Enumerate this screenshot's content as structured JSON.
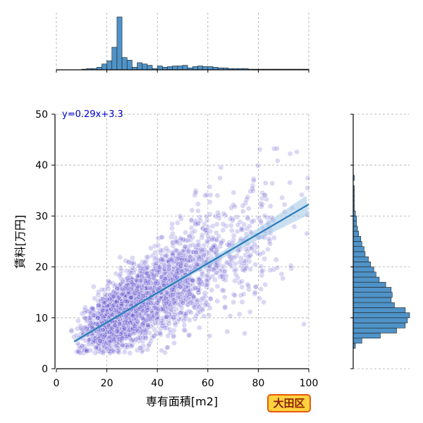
{
  "badge": {
    "label": "大田区"
  },
  "chart_data": {
    "type": "scatter",
    "title": "",
    "xlabel": "専有面積[m2]",
    "ylabel": "賃料[万円]",
    "xlim": [
      0,
      100
    ],
    "ylim": [
      0,
      50
    ],
    "xticks": [
      0,
      20,
      40,
      60,
      80,
      100
    ],
    "yticks": [
      0,
      10,
      20,
      30,
      40,
      50
    ],
    "grid": true,
    "annotation": "y=0.29x+3.3",
    "regression": {
      "slope": 0.29,
      "intercept": 3.3,
      "x_range": [
        7,
        100
      ]
    },
    "scatter": {
      "approx_points": 3000,
      "clusters": [
        {
          "x_center": 24,
          "x_sd": 6,
          "weight": 0.55
        },
        {
          "x_center": 45,
          "x_sd": 10,
          "weight": 0.35
        },
        {
          "x_center": 70,
          "x_sd": 13,
          "weight": 0.1
        }
      ],
      "x_range": [
        5,
        100
      ],
      "y_range": [
        3,
        44
      ]
    },
    "marginal_x_histogram": {
      "bin_start": 0,
      "bin_width": 2,
      "counts": [
        0,
        0,
        0,
        0,
        0,
        1,
        2,
        2,
        4,
        9,
        14,
        35,
        82,
        19,
        15,
        4,
        11,
        9,
        7,
        2,
        6,
        4,
        5,
        6,
        6,
        7,
        3,
        5,
        6,
        5,
        5,
        4,
        3,
        3,
        2,
        2,
        2,
        2,
        1,
        1,
        1,
        1,
        1,
        1,
        1,
        1,
        1,
        1,
        1,
        1
      ]
    },
    "marginal_y_histogram": {
      "bin_start": 0,
      "bin_width": 1,
      "counts": [
        0,
        0,
        0,
        0,
        2,
        8,
        25,
        40,
        48,
        50,
        52,
        48,
        38,
        35,
        36,
        35,
        30,
        24,
        21,
        19,
        16,
        14,
        11,
        10,
        8,
        7,
        5,
        4,
        3,
        3,
        2,
        1,
        1,
        1,
        1,
        1,
        0,
        1,
        0,
        0,
        0,
        0,
        0,
        0,
        0,
        0,
        0,
        0,
        0,
        0
      ]
    },
    "colors": {
      "scatter": "#5a4fcf",
      "histogram_fill": "#4f93c8",
      "histogram_edge": "#1f1f1f",
      "regression": "#2a7ab8",
      "ci_band": "#a7cbe8",
      "annotation": "#0000cc"
    }
  }
}
